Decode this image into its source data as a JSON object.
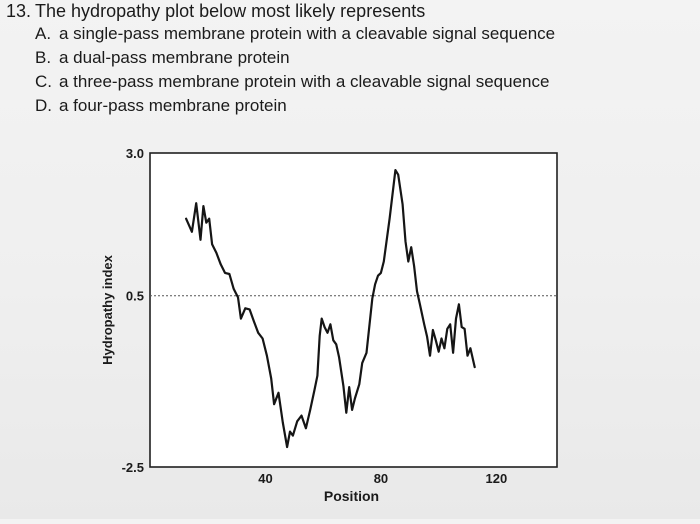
{
  "question": {
    "number": "13.",
    "text": "The hydropathy plot below most likely represents",
    "options": [
      {
        "letter": "A.",
        "text": "a single-pass membrane protein with a cleavable signal sequence"
      },
      {
        "letter": "B.",
        "text": "a dual-pass membrane protein"
      },
      {
        "letter": "C.",
        "text": "a three-pass membrane protein with a cleavable signal sequence"
      },
      {
        "letter": "D.",
        "text": "a four-pass membrane protein"
      }
    ]
  },
  "chart_data": {
    "type": "line",
    "title": "",
    "xlabel": "Position",
    "ylabel": "Hydropathy index",
    "xlim": [
      0,
      141
    ],
    "ylim": [
      -2.5,
      3.0
    ],
    "x_ticks": [
      40,
      80,
      120
    ],
    "y_ticks": [
      3.0,
      0.5,
      -2.5
    ],
    "y_tick_labels": [
      "3.0",
      "0.5",
      "-2.5"
    ],
    "threshold_line": {
      "y": 0.5,
      "style": "dotted"
    },
    "grid": false,
    "legend": "none",
    "series": [
      {
        "color": "#151515",
        "points": [
          [
            12.5,
            1.85
          ],
          [
            14.5,
            1.62
          ],
          [
            16,
            2.12
          ],
          [
            17.5,
            1.48
          ],
          [
            18.5,
            2.07
          ],
          [
            19.5,
            1.78
          ],
          [
            20.5,
            1.85
          ],
          [
            21.5,
            1.4
          ],
          [
            23,
            1.25
          ],
          [
            24.5,
            1.05
          ],
          [
            26,
            0.9
          ],
          [
            27.5,
            0.88
          ],
          [
            29,
            0.62
          ],
          [
            30.5,
            0.47
          ],
          [
            31.5,
            0.1
          ],
          [
            33,
            0.28
          ],
          [
            34.5,
            0.26
          ],
          [
            36,
            0.05
          ],
          [
            37.5,
            -0.15
          ],
          [
            39,
            -0.25
          ],
          [
            40.5,
            -0.55
          ],
          [
            42,
            -0.95
          ],
          [
            43,
            -1.4
          ],
          [
            44.5,
            -1.2
          ],
          [
            46,
            -1.72
          ],
          [
            47.5,
            -2.15
          ],
          [
            48.5,
            -1.88
          ],
          [
            49.5,
            -1.95
          ],
          [
            51,
            -1.7
          ],
          [
            52.5,
            -1.6
          ],
          [
            54,
            -1.82
          ],
          [
            55.5,
            -1.5
          ],
          [
            57,
            -1.15
          ],
          [
            58,
            -0.9
          ],
          [
            58.8,
            -0.2
          ],
          [
            59.5,
            0.1
          ],
          [
            60.5,
            -0.05
          ],
          [
            61.5,
            -0.15
          ],
          [
            62.5,
            0.0
          ],
          [
            63.5,
            -0.28
          ],
          [
            64.5,
            -0.35
          ],
          [
            65.5,
            -0.58
          ],
          [
            67,
            -1.08
          ],
          [
            68,
            -1.55
          ],
          [
            69,
            -1.1
          ],
          [
            70,
            -1.5
          ],
          [
            71,
            -1.3
          ],
          [
            72.5,
            -1.05
          ],
          [
            73.5,
            -0.68
          ],
          [
            75,
            -0.5
          ],
          [
            77,
            0.45
          ],
          [
            78,
            0.7
          ],
          [
            79,
            0.85
          ],
          [
            80,
            0.9
          ],
          [
            81,
            1.1
          ],
          [
            83,
            1.85
          ],
          [
            85,
            2.7
          ],
          [
            86,
            2.62
          ],
          [
            87.5,
            2.1
          ],
          [
            88.5,
            1.45
          ],
          [
            89.5,
            1.1
          ],
          [
            90.5,
            1.35
          ],
          [
            91.5,
            1.02
          ],
          [
            92.5,
            0.58
          ],
          [
            93.5,
            0.35
          ],
          [
            95,
            0.0
          ],
          [
            96,
            -0.22
          ],
          [
            97,
            -0.55
          ],
          [
            98,
            -0.1
          ],
          [
            99,
            -0.28
          ],
          [
            100,
            -0.48
          ],
          [
            101,
            -0.25
          ],
          [
            102,
            -0.42
          ],
          [
            103,
            -0.08
          ],
          [
            104,
            0.0
          ],
          [
            105,
            -0.5
          ],
          [
            106,
            0.1
          ],
          [
            107,
            0.35
          ],
          [
            108,
            -0.05
          ],
          [
            109,
            -0.08
          ],
          [
            110,
            -0.55
          ],
          [
            111,
            -0.42
          ],
          [
            112.5,
            -0.75
          ]
        ]
      }
    ]
  }
}
